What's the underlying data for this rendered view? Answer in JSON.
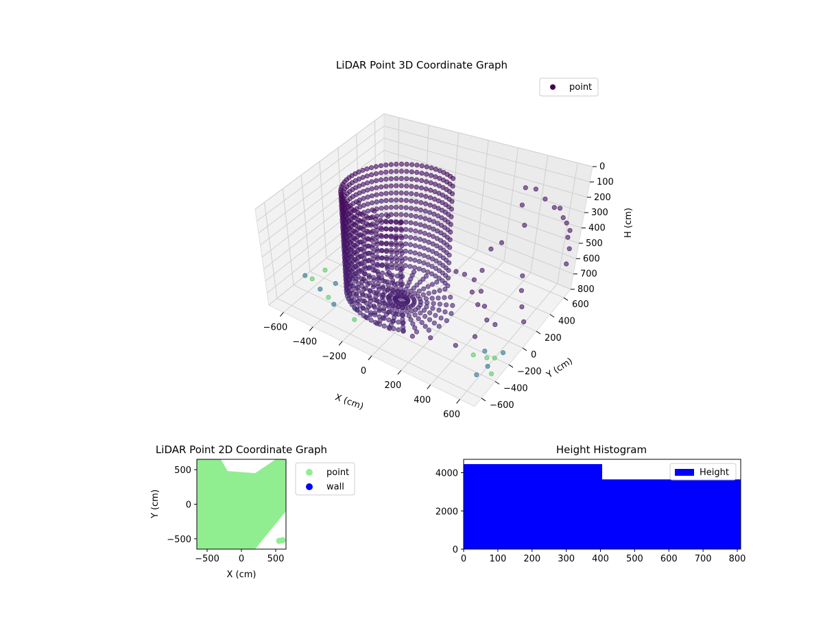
{
  "chart_data": [
    {
      "id": "lidar3d",
      "type": "scatter",
      "title": "LiDAR Point 3D Coordinate Graph",
      "xlabel": "X (cm)",
      "ylabel": "Y (cm)",
      "zlabel": "H (cm)",
      "xlim": [
        -700,
        700
      ],
      "ylim": [
        -700,
        700
      ],
      "zlim": [
        0,
        800
      ],
      "z_axis_inverted": true,
      "x_ticks": [
        -600,
        -400,
        -200,
        0,
        200,
        400,
        600
      ],
      "x_tick_labels": [
        "−600",
        "−400",
        "−200",
        "0",
        "200",
        "400",
        "600"
      ],
      "y_ticks": [
        -600,
        -400,
        -200,
        0,
        200,
        400,
        600
      ],
      "y_tick_labels": [
        "−600",
        "−400",
        "−200",
        "0",
        "200",
        "400",
        "600"
      ],
      "z_ticks": [
        0,
        100,
        200,
        300,
        400,
        500,
        600,
        700,
        800
      ],
      "z_tick_labels": [
        "0",
        "100",
        "200",
        "300",
        "400",
        "500",
        "600",
        "700",
        "800"
      ],
      "grid": true,
      "legend": [
        {
          "name": "point",
          "color": "#440154"
        }
      ],
      "legend_position": "top-right",
      "colormap": "viridis",
      "series": [
        {
          "name": "point",
          "curved_wall": {
            "center": [
              -120,
              -80
            ],
            "radius": 340,
            "angle_range_deg": [
              60,
              300
            ],
            "h_range": [
              0,
              800
            ],
            "angle_step_deg": 5,
            "h_step": 55
          },
          "points": [
            [
              420,
              560,
              150
            ],
            [
              480,
              580,
              210
            ],
            [
              540,
              600,
              260
            ],
            [
              600,
              620,
              320
            ],
            [
              380,
              500,
              120
            ],
            [
              650,
              640,
              400
            ],
            [
              700,
              560,
              460
            ],
            [
              720,
              500,
              520
            ],
            [
              400,
              440,
              200
            ],
            [
              450,
              400,
              300
            ],
            [
              300,
              420,
              480
            ],
            [
              250,
              380,
              520
            ],
            [
              520,
              300,
              560
            ],
            [
              560,
              220,
              600
            ],
            [
              600,
              160,
              660
            ],
            [
              640,
              120,
              720
            ],
            [
              300,
              150,
              760
            ],
            [
              -650,
              320,
              500
            ],
            [
              -600,
              420,
              600
            ],
            [
              -560,
              520,
              680
            ],
            [
              -520,
              600,
              760
            ],
            [
              -480,
              480,
              800
            ],
            [
              -400,
              -60,
              780
            ],
            [
              -350,
              40,
              800
            ],
            [
              100,
              -350,
              800
            ],
            [
              200,
              -300,
              790
            ],
            [
              350,
              -250,
              800
            ],
            [
              420,
              -120,
              780
            ],
            [
              480,
              40,
              760
            ],
            [
              230,
              200,
              730
            ],
            [
              200,
              280,
              700
            ],
            [
              150,
              240,
              660
            ],
            [
              120,
              180,
              620
            ],
            [
              260,
              260,
              600
            ],
            [
              330,
              120,
              640
            ],
            [
              380,
              80,
              700
            ],
            [
              430,
              20,
              740
            ],
            [
              620,
              640,
              360
            ],
            [
              660,
              600,
              420
            ],
            [
              560,
              640,
              280
            ]
          ],
          "low_points": [
            [
              -650,
              -260,
              800
            ],
            [
              -560,
              -320,
              800
            ],
            [
              -480,
              -360,
              800
            ],
            [
              -420,
              -400,
              800
            ],
            [
              -640,
              -120,
              800
            ],
            [
              -700,
              -260,
              800
            ],
            [
              -380,
              -280,
              800
            ],
            [
              -300,
              -350,
              800
            ],
            [
              -250,
              -450,
              800
            ],
            [
              -520,
              -200,
              800
            ],
            [
              560,
              -230,
              800
            ],
            [
              600,
              -300,
              800
            ],
            [
              650,
              -350,
              800
            ],
            [
              520,
              -180,
              800
            ],
            [
              600,
              -200,
              800
            ],
            [
              580,
              -420,
              800
            ],
            [
              480,
              -260,
              800
            ],
            [
              620,
              -120,
              800
            ]
          ]
        }
      ]
    },
    {
      "id": "lidar2d",
      "type": "scatter",
      "title": "LiDAR Point 2D Coordinate Graph",
      "xlabel": "X (cm)",
      "ylabel": "Y (cm)",
      "xlim": [
        -650,
        650
      ],
      "ylim": [
        -650,
        650
      ],
      "x_ticks": [
        -500,
        0,
        500
      ],
      "x_tick_labels": [
        "−500",
        "0",
        "500"
      ],
      "y_ticks": [
        -500,
        0,
        500
      ],
      "y_tick_labels": [
        "−500",
        "0",
        "500"
      ],
      "legend": [
        {
          "name": "point",
          "color": "#90ee90"
        },
        {
          "name": "wall",
          "color": "#0000ff"
        }
      ],
      "legend_position": "outside-right",
      "series": [
        {
          "name": "point",
          "color": "#90ee90",
          "region_polygon": [
            [
              -650,
              650
            ],
            [
              -300,
              650
            ],
            [
              -200,
              480
            ],
            [
              200,
              450
            ],
            [
              500,
              650
            ],
            [
              650,
              650
            ],
            [
              650,
              -100
            ],
            [
              200,
              -650
            ],
            [
              -650,
              -650
            ]
          ],
          "extra_points": [
            [
              550,
              150
            ],
            [
              400,
              120
            ],
            [
              600,
              -520
            ],
            [
              550,
              -530
            ],
            [
              -620,
              -530
            ],
            [
              600,
              480
            ],
            [
              520,
              500
            ],
            [
              -500,
              600
            ],
            [
              -600,
              580
            ]
          ]
        },
        {
          "name": "wall",
          "color": "#0000ff",
          "points": []
        }
      ]
    },
    {
      "id": "hist",
      "type": "bar",
      "title": "Height Histogram",
      "xlabel": "",
      "ylabel": "",
      "xlim": [
        0,
        810
      ],
      "ylim": [
        0,
        4700
      ],
      "x_ticks": [
        0,
        100,
        200,
        300,
        400,
        500,
        600,
        700,
        800
      ],
      "x_tick_labels": [
        "0",
        "100",
        "200",
        "300",
        "400",
        "500",
        "600",
        "700",
        "800"
      ],
      "y_ticks": [
        0,
        2000,
        4000
      ],
      "y_tick_labels": [
        "0",
        "2000",
        "4000"
      ],
      "legend": [
        {
          "name": "Height",
          "color": "#0000ff"
        }
      ],
      "legend_position": "top-right",
      "bins": [
        {
          "start": 0,
          "end": 405,
          "count": 4450
        },
        {
          "start": 405,
          "end": 810,
          "count": 3650
        }
      ],
      "color": "#0000ff"
    }
  ]
}
